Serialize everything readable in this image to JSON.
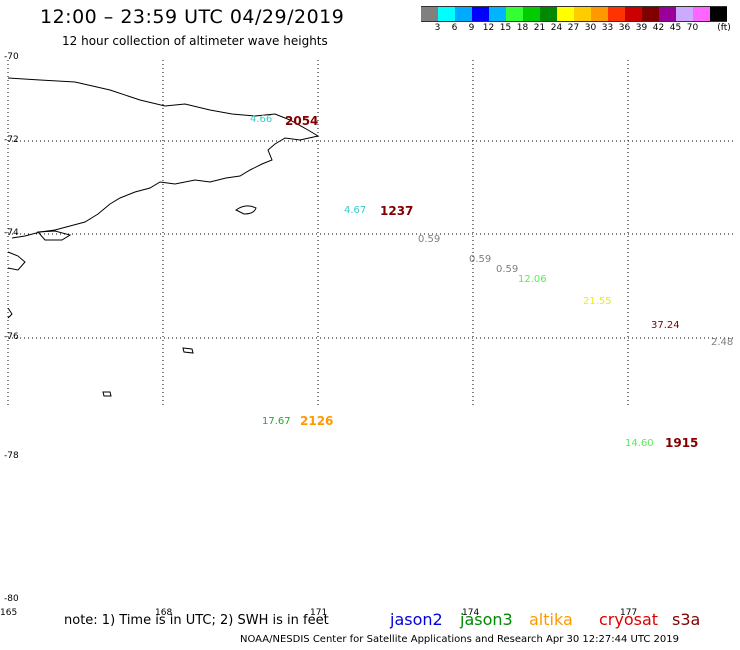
{
  "header": {
    "title": "12:00 – 23:59 UTC 04/29/2019",
    "subtitle": "12 hour collection of altimeter wave heights"
  },
  "legend": {
    "unit": "(ft)",
    "colors": [
      "#808080",
      "#00ffff",
      "#00aaff",
      "#0000ff",
      "#00b4ff",
      "#33ff33",
      "#00cc00",
      "#008800",
      "#ffff00",
      "#ffcc00",
      "#ff9900",
      "#ff3300",
      "#cc0000",
      "#800000",
      "#990099",
      "#ccaaff",
      "#ff66ff",
      "#000000"
    ],
    "labels": [
      "3",
      "6",
      "9",
      "12",
      "15",
      "18",
      "21",
      "24",
      "27",
      "30",
      "33",
      "36",
      "39",
      "42",
      "45",
      "70"
    ]
  },
  "grid": {
    "lat_labels": [
      "-70",
      "-72",
      "-74",
      "-76",
      "-78",
      "-80"
    ],
    "lon_labels": [
      "165",
      "168",
      "171",
      "174",
      "177"
    ]
  },
  "observations": [
    {
      "kind": "wave",
      "text": "4.66",
      "color": "#33cccc"
    },
    {
      "kind": "time",
      "text": "2054",
      "color": "#800000"
    },
    {
      "kind": "wave",
      "text": "4.67",
      "color": "#33cccc"
    },
    {
      "kind": "time",
      "text": "1237",
      "color": "#800000"
    },
    {
      "kind": "wave",
      "text": "0.59",
      "color": "#808080"
    },
    {
      "kind": "wave",
      "text": "0.59",
      "color": "#808080"
    },
    {
      "kind": "wave",
      "text": "0.59",
      "color": "#808080"
    },
    {
      "kind": "wave",
      "text": "12.06",
      "color": "#55ee55"
    },
    {
      "kind": "wave",
      "text": "21.55",
      "color": "#eeee00"
    },
    {
      "kind": "wave",
      "text": "37.24",
      "color": "#800000"
    },
    {
      "kind": "wave",
      "text": "2.48",
      "color": "#808080"
    },
    {
      "kind": "wave",
      "text": "17.67",
      "color": "#22aa22"
    },
    {
      "kind": "time",
      "text": "2126",
      "color": "#ff9900"
    },
    {
      "kind": "wave",
      "text": "14.60",
      "color": "#55ee55"
    },
    {
      "kind": "time",
      "text": "1915",
      "color": "#800000"
    }
  ],
  "footer": {
    "note": "note: 1) Time is in UTC; 2) SWH is in feet",
    "satellites": [
      {
        "name": "jason2",
        "color": "#0000dd"
      },
      {
        "name": "jason3",
        "color": "#008800"
      },
      {
        "name": "altika",
        "color": "#ff9900"
      },
      {
        "name": "cryosat",
        "color": "#dd0000"
      },
      {
        "name": "s3a",
        "color": "#800000"
      }
    ],
    "credit": "NOAA/NESDIS Center for Satellite Applications and Research    Apr 30 12:27:44 UTC 2019"
  }
}
